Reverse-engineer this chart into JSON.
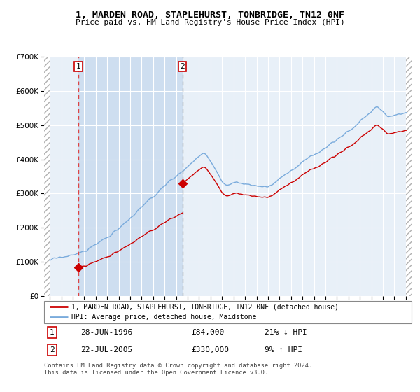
{
  "title": "1, MARDEN ROAD, STAPLEHURST, TONBRIDGE, TN12 0NF",
  "subtitle": "Price paid vs. HM Land Registry's House Price Index (HPI)",
  "legend_line1": "1, MARDEN ROAD, STAPLEHURST, TONBRIDGE, TN12 0NF (detached house)",
  "legend_line2": "HPI: Average price, detached house, Maidstone",
  "purchase1_date": 1996.49,
  "purchase1_price": 84000,
  "purchase2_date": 2005.55,
  "purchase2_price": 330000,
  "hpi_color": "#7aabdc",
  "price_color": "#cc0000",
  "marker_color": "#cc0000",
  "dashed1_color": "#dd4444",
  "dashed2_color": "#aaaaaa",
  "background_plot": "#e8f0f8",
  "shade_color": "#ccddf0",
  "ylim_max": 700000,
  "xlim_min": 1993.5,
  "xlim_max": 2025.5,
  "footnote": "Contains HM Land Registry data © Crown copyright and database right 2024.\nThis data is licensed under the Open Government Licence v3.0."
}
